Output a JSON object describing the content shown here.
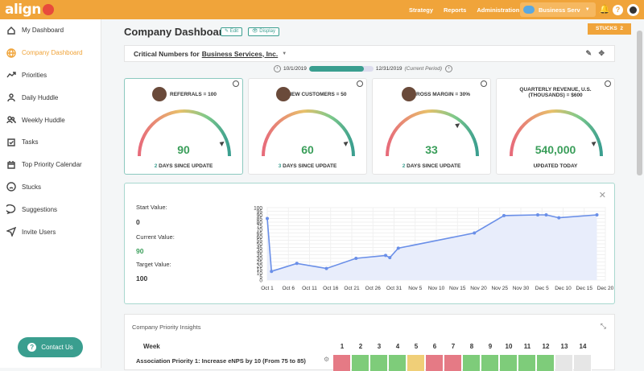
{
  "app": {
    "logo": "align"
  },
  "topnav": [
    "Strategy",
    "Reports",
    "Administration"
  ],
  "business_selector": "Business Serv",
  "sidebar": [
    {
      "label": "My Dashboard",
      "icon": "home-icon"
    },
    {
      "label": "Company Dashboard",
      "icon": "globe-icon",
      "active": true
    },
    {
      "label": "Priorities",
      "icon": "trend-icon"
    },
    {
      "label": "Daily Huddle",
      "icon": "user-icon"
    },
    {
      "label": "Weekly Huddle",
      "icon": "users-icon"
    },
    {
      "label": "Tasks",
      "icon": "check-icon"
    },
    {
      "label": "Top Priority Calendar",
      "icon": "calendar-icon"
    },
    {
      "label": "Stucks",
      "icon": "sad-icon"
    },
    {
      "label": "Suggestions",
      "icon": "chat-icon"
    },
    {
      "label": "Invite Users",
      "icon": "send-icon"
    }
  ],
  "contact_button": "Contact Us",
  "page": {
    "title": "Company Dashboard",
    "edit": "✎ Edit",
    "display": "👁 Display",
    "stucks_label": "STUCKS",
    "stucks_count": "2"
  },
  "critical": {
    "prefix": "Critical Numbers for",
    "company": "Business Services, Inc."
  },
  "period": {
    "start": "10/1/2019",
    "end": "12/31/2019",
    "note": "(Current Period)",
    "progress": 0.85
  },
  "cards": [
    {
      "label": "REFERRALS = 100",
      "value": "90",
      "since_num": "2",
      "since_text": " DAYS SINCE UPDATE",
      "level": 0.9,
      "avatar": true
    },
    {
      "label": "NEW CUSTOMERS = 50",
      "value": "60",
      "since_num": "3",
      "since_text": " DAYS SINCE UPDATE",
      "level": 0.9,
      "avatar": true
    },
    {
      "label": "GROSS MARGIN = 30%",
      "value": "33",
      "since_num": "2",
      "since_text": " DAYS SINCE UPDATE",
      "level": 0.72,
      "avatar": true
    },
    {
      "label": "QUARTERLY REVENUE, U.S. (THOUSANDS) = $600",
      "value": "540,000",
      "since_num": "",
      "since_text": "UPDATED TODAY",
      "level": 0.9,
      "avatar": false
    }
  ],
  "detail": {
    "start_label": "Start Value:",
    "start": "0",
    "current_label": "Current Value:",
    "current": "90",
    "target_label": "Target Value:",
    "target": "100"
  },
  "chart_data": {
    "type": "area",
    "x_ticks": [
      "Oct 1",
      "Oct 6",
      "Oct 11",
      "Oct 16",
      "Oct 21",
      "Oct 26",
      "Oct 31",
      "Nov 5",
      "Nov 10",
      "Nov 15",
      "Nov 20",
      "Nov 25",
      "Nov 30",
      "Dec 5",
      "Dec 10",
      "Dec 15",
      "Dec 20"
    ],
    "y_ticks": [
      0,
      5,
      10,
      15,
      20,
      25,
      30,
      35,
      40,
      45,
      50,
      55,
      60,
      65,
      70,
      75,
      80,
      85,
      90,
      95,
      100
    ],
    "ylim": [
      0,
      100
    ],
    "points": [
      {
        "x": "Oct 1",
        "y": 85
      },
      {
        "x": "Oct 2",
        "y": 12
      },
      {
        "x": "Oct 8",
        "y": 23
      },
      {
        "x": "Oct 15",
        "y": 16
      },
      {
        "x": "Oct 22",
        "y": 30
      },
      {
        "x": "Oct 29",
        "y": 34
      },
      {
        "x": "Oct 30",
        "y": 31
      },
      {
        "x": "Nov 1",
        "y": 44
      },
      {
        "x": "Nov 19",
        "y": 65
      },
      {
        "x": "Nov 26",
        "y": 89
      },
      {
        "x": "Dec 4",
        "y": 90
      },
      {
        "x": "Dec 6",
        "y": 90
      },
      {
        "x": "Dec 9",
        "y": 86
      },
      {
        "x": "Dec 18",
        "y": 90
      }
    ],
    "color": "#6a8fe8"
  },
  "insights": {
    "title": "Company Priority Insights",
    "week_label": "Week",
    "weeks": [
      "1",
      "2",
      "3",
      "4",
      "5",
      "6",
      "7",
      "8",
      "9",
      "10",
      "11",
      "12",
      "13",
      "14"
    ],
    "priority": "Association Priority 1: Increase eNPS by 10 (From 75 to 85)",
    "statuses": [
      "red",
      "green",
      "green",
      "green",
      "yellow",
      "red",
      "red",
      "green",
      "green",
      "green",
      "green",
      "green",
      "grey",
      "grey"
    ]
  },
  "colors": {
    "accent": "#f0a43a",
    "teal": "#3a9e8f",
    "green": "#3a9e5a"
  }
}
